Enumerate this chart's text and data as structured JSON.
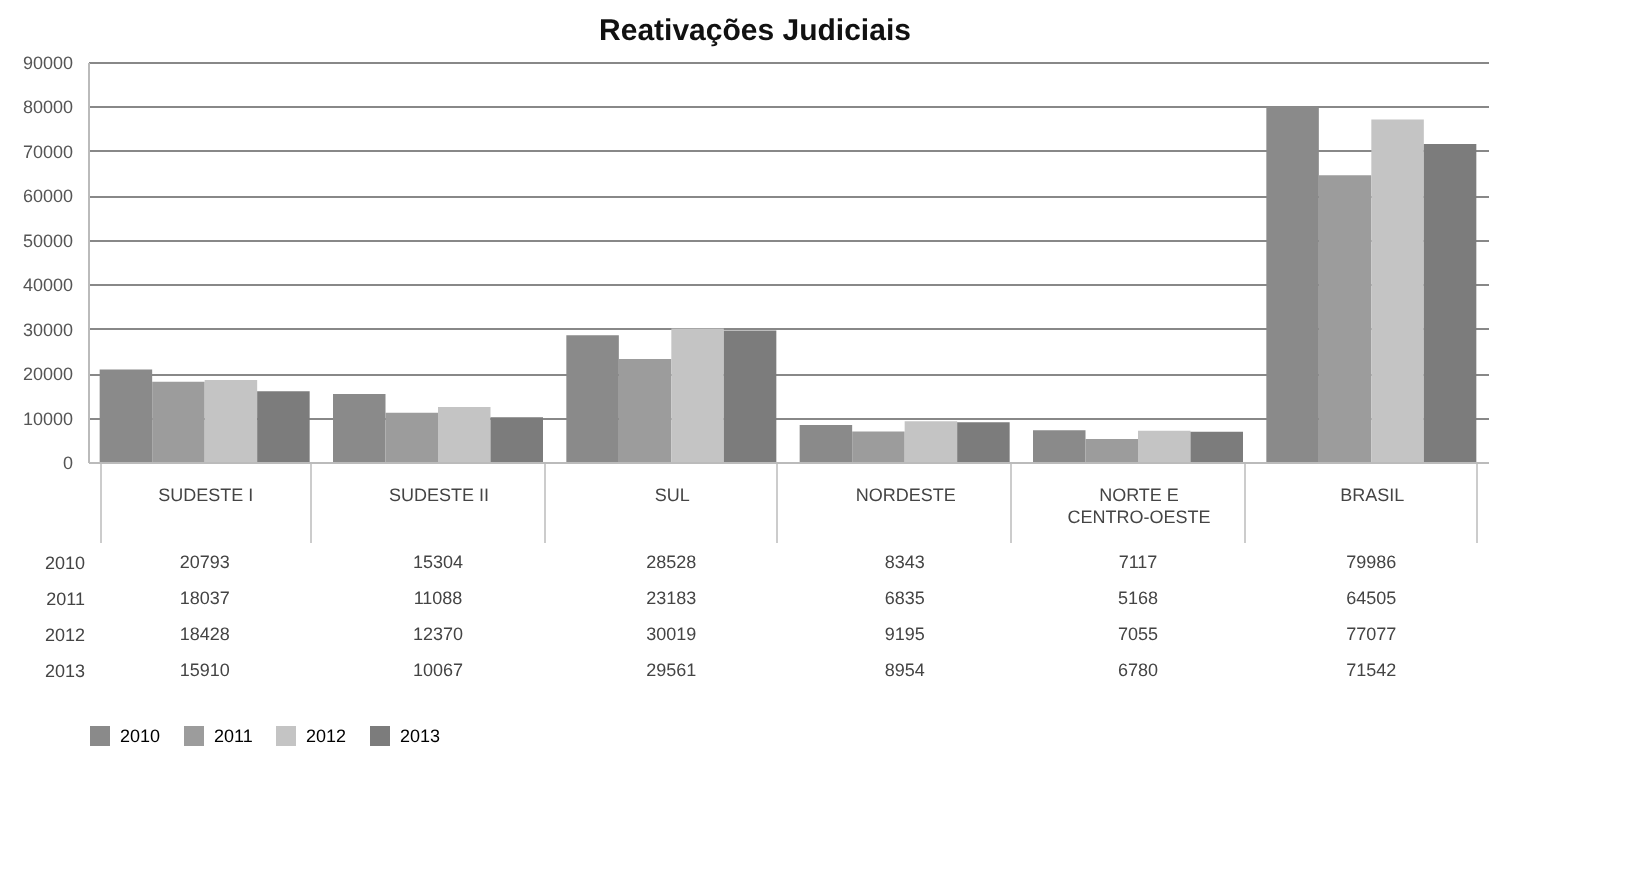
{
  "chart_data": {
    "type": "bar",
    "title": "Reativações Judiciais",
    "categories": [
      "SUDESTE I",
      "SUDESTE II",
      "SUL",
      "NORDESTE",
      "NORTE E CENTRO-OESTE",
      "BRASIL"
    ],
    "series": [
      {
        "name": "2010",
        "color": "#8a8a8a",
        "values": [
          20793,
          15304,
          28528,
          8343,
          7117,
          79986
        ]
      },
      {
        "name": "2011",
        "color": "#9c9c9c",
        "values": [
          18037,
          11088,
          23183,
          6835,
          5168,
          64505
        ]
      },
      {
        "name": "2012",
        "color": "#c4c4c4",
        "values": [
          18428,
          12370,
          30019,
          9195,
          7055,
          77077
        ]
      },
      {
        "name": "2013",
        "color": "#7c7c7c",
        "values": [
          15910,
          10067,
          29561,
          8954,
          6780,
          71542
        ]
      }
    ],
    "ylim": [
      0,
      90000
    ],
    "yticks": [
      0,
      10000,
      20000,
      30000,
      40000,
      50000,
      60000,
      70000,
      80000,
      90000
    ],
    "grid": "y",
    "data_labels": true,
    "legend": "bottom"
  }
}
